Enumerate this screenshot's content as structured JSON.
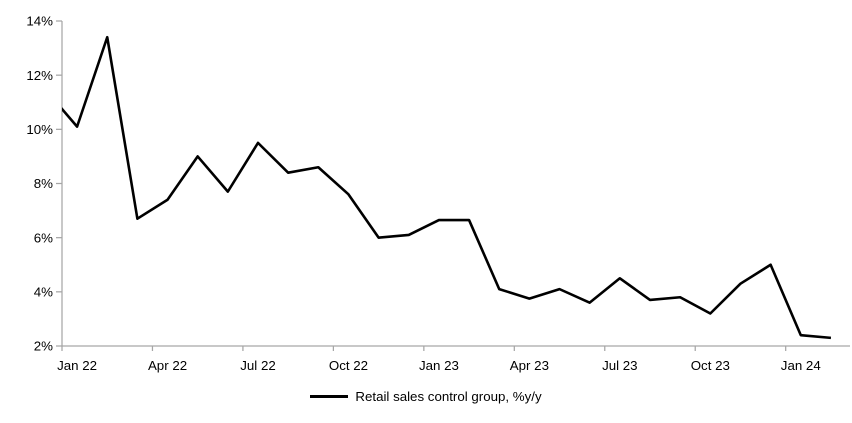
{
  "chart_data": {
    "type": "line",
    "title": "",
    "legend": "Retail sales control group, %y/y",
    "legend_position": "bottom-center",
    "grid": false,
    "series_color": "#000000",
    "axis_color": "#a6a6a6",
    "text_color": "#000000",
    "background": "#ffffff",
    "ylim": [
      2,
      14
    ],
    "y_tick_step": 2,
    "y_tick_labels": [
      "2%",
      "4%",
      "6%",
      "8%",
      "10%",
      "12%",
      "14%"
    ],
    "x_tick_labels": [
      "Jan 22",
      "Apr 22",
      "Jul 22",
      "Oct 22",
      "Jan 23",
      "Apr 23",
      "Jul 23",
      "Oct 23",
      "Jan 24"
    ],
    "x_label_interval_months": 3,
    "categories": [
      "Jan 22",
      "Feb 22",
      "Mar 22",
      "Apr 22",
      "May 22",
      "Jun 22",
      "Jul 22",
      "Aug 22",
      "Sep 22",
      "Oct 22",
      "Nov 22",
      "Dec 22",
      "Jan 23",
      "Feb 23",
      "Mar 23",
      "Apr 23",
      "May 23",
      "Jun 23",
      "Jul 23",
      "Aug 23",
      "Sep 23",
      "Oct 23",
      "Nov 23",
      "Dec 23",
      "Jan 24",
      "Feb 24"
    ],
    "values": [
      10.1,
      13.4,
      6.7,
      7.4,
      9.0,
      7.7,
      9.5,
      8.4,
      8.6,
      7.6,
      6.0,
      6.1,
      6.65,
      6.65,
      4.1,
      3.75,
      4.1,
      3.6,
      4.5,
      3.7,
      3.8,
      3.2,
      4.3,
      5.0,
      2.4,
      2.3
    ],
    "lead_in": {
      "category": "Dec 21",
      "value": 11.4,
      "note": "point sits left of plot edge; line enters chart at the y-axis at ~10.7"
    }
  }
}
